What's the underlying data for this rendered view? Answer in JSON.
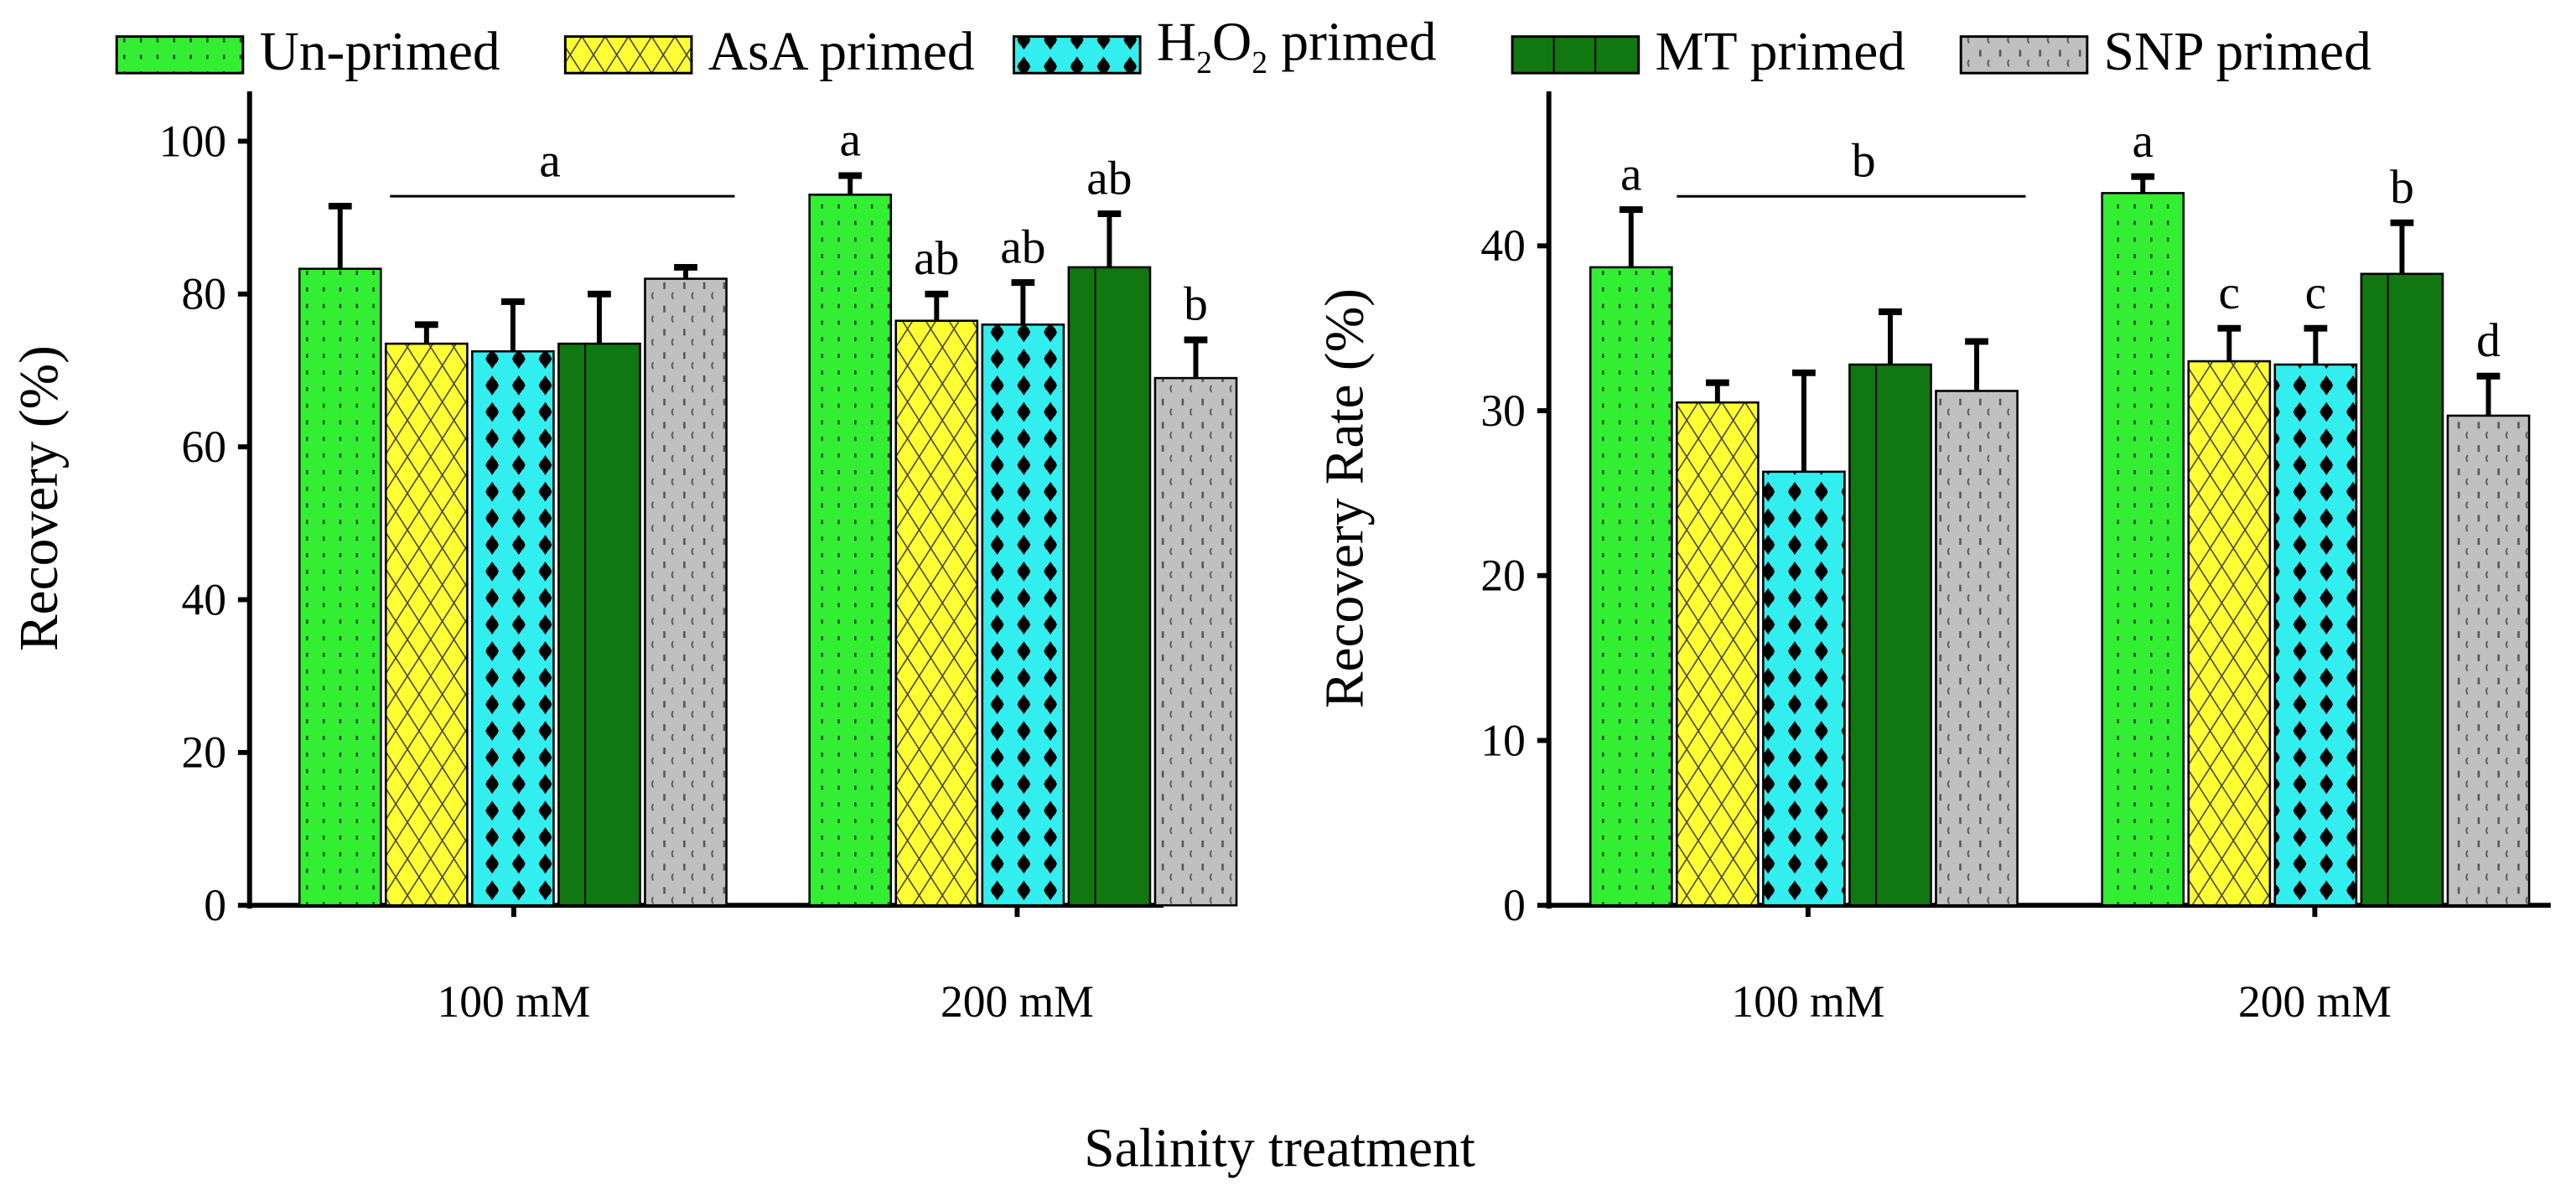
{
  "legend": [
    {
      "label": "Un-primed",
      "color": "#33ee33",
      "pattern": "dots"
    },
    {
      "label": "AsA primed",
      "color": "#ffff33",
      "pattern": "crosshatch"
    },
    {
      "label_main": "H",
      "sub1": "2",
      "mid": "O",
      "sub2": "2",
      "tail": " primed",
      "label": "H2O2 primed",
      "color": "#33eeee",
      "pattern": "black-dots"
    },
    {
      "label": "MT primed",
      "color": "#117711",
      "pattern": "solid-lines"
    },
    {
      "label": "SNP primed",
      "color": "#c0c0c0",
      "pattern": "marks"
    }
  ],
  "xlabel": "Salinity treatment",
  "chart_data": [
    {
      "type": "bar",
      "ylabel": "Recovery (%)",
      "ylim": [
        0,
        105
      ],
      "yticks": [
        "0",
        "20",
        "40",
        "60",
        "80",
        "100"
      ],
      "categories": [
        "100 mM",
        "200 mM"
      ],
      "series": [
        {
          "name": "Un-primed",
          "values": [
            83.3,
            93.0
          ],
          "errors": [
            8.2,
            2.5
          ]
        },
        {
          "name": "AsA primed",
          "values": [
            73.5,
            76.5
          ],
          "errors": [
            2.5,
            3.5
          ]
        },
        {
          "name": "H2O2 primed",
          "values": [
            72.5,
            76.0
          ],
          "errors": [
            6.5,
            5.5
          ]
        },
        {
          "name": "MT primed",
          "values": [
            73.5,
            83.5
          ],
          "errors": [
            6.5,
            7.0
          ]
        },
        {
          "name": "SNP primed",
          "values": [
            82.0,
            69.0
          ],
          "errors": [
            1.5,
            5.0
          ]
        }
      ],
      "letters": [
        [
          "",
          "",
          "",
          "",
          ""
        ],
        [
          "a",
          "ab",
          "ab",
          "ab",
          "b"
        ]
      ],
      "group_letter": {
        "category": 0,
        "text": "a",
        "from": 0,
        "to": 4
      }
    },
    {
      "type": "bar",
      "ylabel": "Recovery Rate (%)",
      "ylim": [
        0,
        50
      ],
      "yticks": [
        "0",
        "10",
        "20",
        "30",
        "40"
      ],
      "categories": [
        "100 mM",
        "200 mM"
      ],
      "series": [
        {
          "name": "Un-primed",
          "values": [
            38.7,
            43.2
          ],
          "errors": [
            3.5,
            1.0
          ]
        },
        {
          "name": "AsA primed",
          "values": [
            30.5,
            33.0
          ],
          "errors": [
            1.2,
            2.0
          ]
        },
        {
          "name": "H2O2 primed",
          "values": [
            26.3,
            32.8
          ],
          "errors": [
            6.0,
            2.2
          ]
        },
        {
          "name": "MT primed",
          "values": [
            32.8,
            38.3
          ],
          "errors": [
            3.2,
            3.1
          ]
        },
        {
          "name": "SNP primed",
          "values": [
            31.2,
            29.7
          ],
          "errors": [
            3.0,
            2.4
          ]
        }
      ],
      "letters": [
        [
          "a",
          "",
          "",
          "",
          ""
        ],
        [
          "a",
          "c",
          "c",
          "b",
          "d"
        ]
      ],
      "group_letter": {
        "category": 0,
        "text": "b",
        "from": 1,
        "to": 4
      }
    }
  ]
}
